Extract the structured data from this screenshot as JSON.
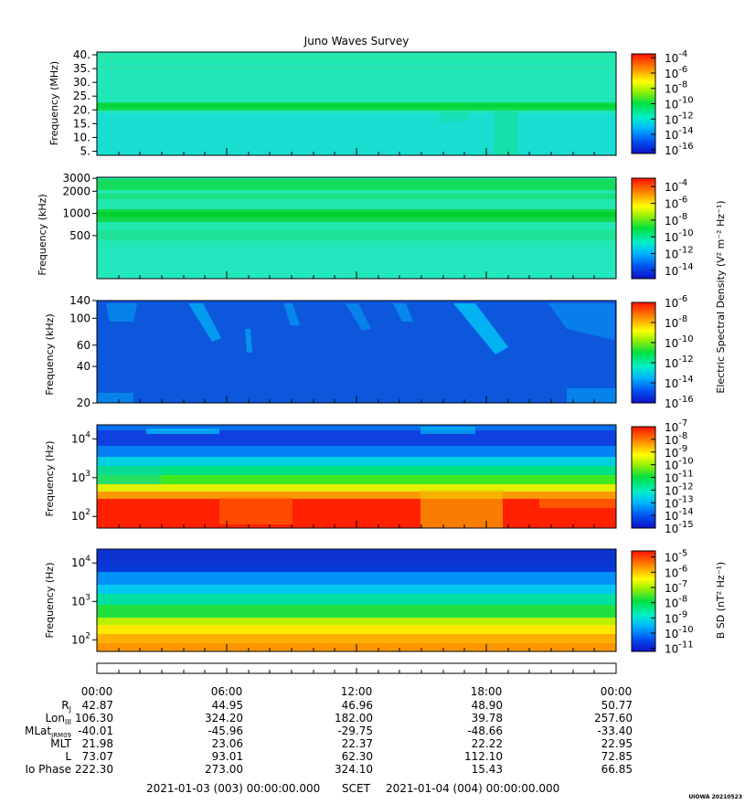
{
  "title": "Juno Waves Survey",
  "credit": "UIOWA 20210523",
  "time_axis": {
    "ticks": [
      "00:00",
      "06:00",
      "12:00",
      "18:00",
      "00:00"
    ],
    "start": "2021-01-03 (003) 00:00:00.000",
    "frame": "SCET",
    "end": "2021-01-04 (004) 00:00:00.000"
  },
  "ephemeris": [
    {
      "label": "R",
      "sub": "J",
      "values": [
        "42.87",
        "44.95",
        "46.96",
        "48.90",
        "50.77"
      ]
    },
    {
      "label": "Lon",
      "sub": "III",
      "values": [
        "106.30",
        "324.20",
        "182.00",
        "39.78",
        "257.60"
      ]
    },
    {
      "label": "MLat",
      "sub": "JRM09",
      "values": [
        "-40.01",
        "-45.96",
        "-29.75",
        "-48.66",
        "-33.40"
      ]
    },
    {
      "label": "MLT",
      "sub": "",
      "values": [
        "21.98",
        "23.06",
        "22.37",
        "22.22",
        "22.95"
      ]
    },
    {
      "label": "L",
      "sub": "",
      "values": [
        "73.07",
        "93.01",
        "62.30",
        "112.10",
        "72.85"
      ]
    },
    {
      "label": "Io Phase",
      "sub": "",
      "values": [
        "222.30",
        "273.00",
        "324.10",
        "15.43",
        "66.85"
      ]
    }
  ],
  "colorbar_labels": {
    "electric": "Electric Spectral Density (V² m⁻² Hz⁻¹)",
    "magnetic": "B SD (nT² Hz⁻¹)"
  },
  "chart_data": [
    {
      "type": "heatmap",
      "ylabel": "Frequency (MHz)",
      "yscale": "linear",
      "ylim": [
        3.5,
        41
      ],
      "yticks": [
        "40.",
        "35.",
        "30.",
        "25.",
        "20.",
        "15.",
        "10.",
        "5."
      ],
      "ytick_values": [
        40,
        35,
        30,
        25,
        20,
        15,
        10,
        5
      ],
      "colorbar": {
        "ticks": [
          "-4",
          "-6",
          "-8",
          "-10",
          "-12",
          "-14",
          "-16"
        ],
        "exponents": [
          -4,
          -6,
          -8,
          -10,
          -12,
          -14,
          -16
        ],
        "range": [
          -16.5,
          -3.5
        ]
      }
    },
    {
      "type": "heatmap",
      "ylabel": "Frequency (kHz)",
      "yscale": "log",
      "ylim": [
        130,
        3100
      ],
      "yticks": [
        "3000",
        "2000",
        "1000",
        "500"
      ],
      "ytick_values": [
        3000,
        2000,
        1000,
        500
      ],
      "colorbar": {
        "ticks": [
          "-4",
          "-6",
          "-8",
          "-10",
          "-12",
          "-14"
        ],
        "exponents": [
          -4,
          -6,
          -8,
          -10,
          -12,
          -14
        ],
        "range": [
          -15,
          -3
        ]
      }
    },
    {
      "type": "heatmap",
      "ylabel": "Frequency (kHz)",
      "yscale": "log",
      "ylim": [
        20,
        140
      ],
      "yticks": [
        "140",
        "100",
        "60",
        "40",
        "20"
      ],
      "ytick_values": [
        140,
        100,
        60,
        40,
        20
      ],
      "colorbar": {
        "ticks": [
          "-6",
          "-8",
          "-10",
          "-12",
          "-14",
          "-16"
        ],
        "exponents": [
          -6,
          -8,
          -10,
          -12,
          -14,
          -16
        ],
        "range": [
          -16,
          -6
        ]
      }
    },
    {
      "type": "heatmap",
      "ylabel": "Frequency (Hz)",
      "yscale": "log",
      "ylim": [
        50,
        23000
      ],
      "yticks": [
        "4",
        "3",
        "2"
      ],
      "ytick_values": [
        10000,
        1000,
        100
      ],
      "colorbar": {
        "ticks": [
          "-7",
          "-8",
          "-9",
          "-10",
          "-11",
          "-12",
          "-13",
          "-14",
          "-15"
        ],
        "exponents": [
          -7,
          -8,
          -9,
          -10,
          -11,
          -12,
          -13,
          -14,
          -15
        ],
        "range": [
          -15,
          -7
        ]
      }
    },
    {
      "type": "heatmap",
      "ylabel": "Frequency (Hz)",
      "yscale": "log",
      "ylim": [
        50,
        23000
      ],
      "yticks": [
        "4",
        "3",
        "2"
      ],
      "ytick_values": [
        10000,
        1000,
        100
      ],
      "colorbar": {
        "ticks": [
          "-5",
          "-6",
          "-7",
          "-8",
          "-9",
          "-10",
          "-11"
        ],
        "exponents": [
          -5,
          -6,
          -7,
          -8,
          -9,
          -10,
          -11
        ],
        "range": [
          -11.2,
          -4.6
        ]
      }
    }
  ]
}
